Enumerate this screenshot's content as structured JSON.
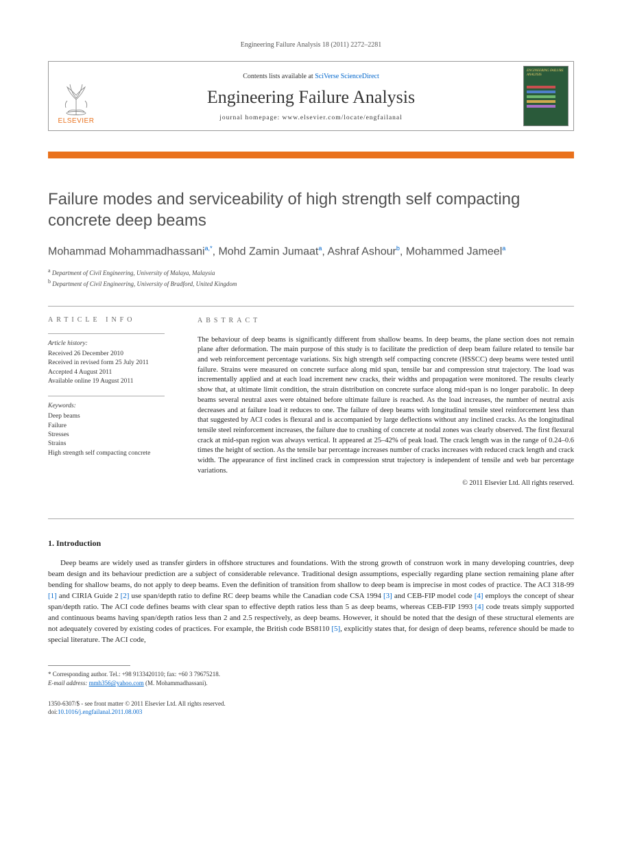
{
  "journal_ref": "Engineering Failure Analysis 18 (2011) 2272–2281",
  "header": {
    "contents_prefix": "Contents lists available at ",
    "contents_link": "SciVerse ScienceDirect",
    "journal_name": "Engineering Failure Analysis",
    "homepage": "journal homepage: www.elsevier.com/locate/engfailanal",
    "elsevier_label": "ELSEVIER",
    "cover_title": "ENGINEERING FAILURE ANALYSIS",
    "cover_bar_colors": [
      "#c94f4f",
      "#4f7fc9",
      "#6fb96f",
      "#cfa94f",
      "#a96fc9"
    ],
    "cover_bg": "#2a5a3a"
  },
  "title": "Failure modes and serviceability of high strength self compacting concrete deep beams",
  "authors_html_parts": {
    "a1": "Mohammad Mohammadhassani",
    "a1_sup": "a,",
    "a1_star": "*",
    "sep": ", ",
    "a2": "Mohd Zamin Jumaat",
    "a2_sup": "a",
    "a3": "Ashraf Ashour",
    "a3_sup": "b",
    "a4": "Mohammed Jameel",
    "a4_sup": "a"
  },
  "affiliations": [
    {
      "sup": "a",
      "text": "Department of Civil Engineering, University of Malaya, Malaysia"
    },
    {
      "sup": "b",
      "text": "Department of Civil Engineering, University of Bradford, United Kingdom"
    }
  ],
  "info": {
    "heading": "ARTICLE INFO",
    "history_label": "Article history:",
    "history": [
      "Received 26 December 2010",
      "Received in revised form 25 July 2011",
      "Accepted 4 August 2011",
      "Available online 19 August 2011"
    ],
    "keywords_label": "Keywords:",
    "keywords": [
      "Deep beams",
      "Failure",
      "Stresses",
      "Strains",
      "High strength self compacting concrete"
    ]
  },
  "abstract": {
    "heading": "ABSTRACT",
    "text": "The behaviour of deep beams is significantly different from shallow beams. In deep beams, the plane section does not remain plane after deformation. The main purpose of this study is to facilitate the prediction of deep beam failure related to tensile bar and web reinforcement percentage variations. Six high strength self compacting concrete (HSSCC) deep beams were tested until failure. Strains were measured on concrete surface along mid span, tensile bar and compression strut trajectory. The load was incrementally applied and at each load increment new cracks, their widths and propagation were monitored. The results clearly show that, at ultimate limit condition, the strain distribution on concrete surface along mid-span is no longer parabolic. In deep beams several neutral axes were obtained before ultimate failure is reached. As the load increases, the number of neutral axis decreases and at failure load it reduces to one. The failure of deep beams with longitudinal tensile steel reinforcement less than that suggested by ACI codes is flexural and is accompanied by large deflections without any inclined cracks. As the longitudinal tensile steel reinforcement increases, the failure due to crushing of concrete at nodal zones was clearly observed. The first flexural crack at mid-span region was always vertical. It appeared at 25–42% of peak load. The crack length was in the range of 0.24–0.6 times the height of section. As the tensile bar percentage increases number of cracks increases with reduced crack length and crack width. The appearance of first inclined crack in compression strut trajectory is independent of tensile and web bar percentage variations.",
    "copyright": "© 2011 Elsevier Ltd. All rights reserved."
  },
  "section1": {
    "heading": "1. Introduction",
    "para1_before": "Deep beams are widely used as transfer girders in offshore structures and foundations. With the strong growth of construon work in many developing countries, deep beam design and its behaviour prediction are a subject of considerable relevance. Traditional design assumptions, especially regarding plane section remaining plane after bending for shallow beams, do not apply to deep beams. Even the definition of transition from shallow to deep beam is imprecise in most codes of practice. The ACI 318-99 ",
    "ref1": "[1]",
    "para1_mid1": " and CIRIA Guide 2 ",
    "ref2": "[2]",
    "para1_mid2": " use span/depth ratio to define RC deep beams while the Canadian code CSA 1994 ",
    "ref3": "[3]",
    "para1_mid3": " and CEB-FIP model code ",
    "ref4a": "[4]",
    "para1_mid4": " employs the concept of shear span/depth ratio. The ACI code defines beams with clear span to effective depth ratios less than 5 as deep beams, whereas CEB-FIP 1993 ",
    "ref4b": "[4]",
    "para1_mid5": " code treats simply supported and continuous beams having span/depth ratios less than 2 and 2.5 respectively, as deep beams. However, it should be noted that the design of these structural elements are not adequately covered by existing codes of practices. For example, the British code BS8110 ",
    "ref5": "[5]",
    "para1_end": ", explicitly states that, for design of deep beams, reference should be made to special literature. The ACI code,"
  },
  "footnote": {
    "corr": "* Corresponding author. Tel.: +98 9133420110; fax: +60 3 79675218.",
    "email_label": "E-mail address: ",
    "email": "mmh356@yahoo.com",
    "email_paren": " (M. Mohammadhassani)."
  },
  "bottom": {
    "line1": "1350-6307/$ - see front matter © 2011 Elsevier Ltd. All rights reserved.",
    "doi_prefix": "doi:",
    "doi": "10.1016/j.engfailanal.2011.08.003"
  },
  "colors": {
    "orange": "#e9711c",
    "link": "#0066cc",
    "text": "#333333"
  }
}
